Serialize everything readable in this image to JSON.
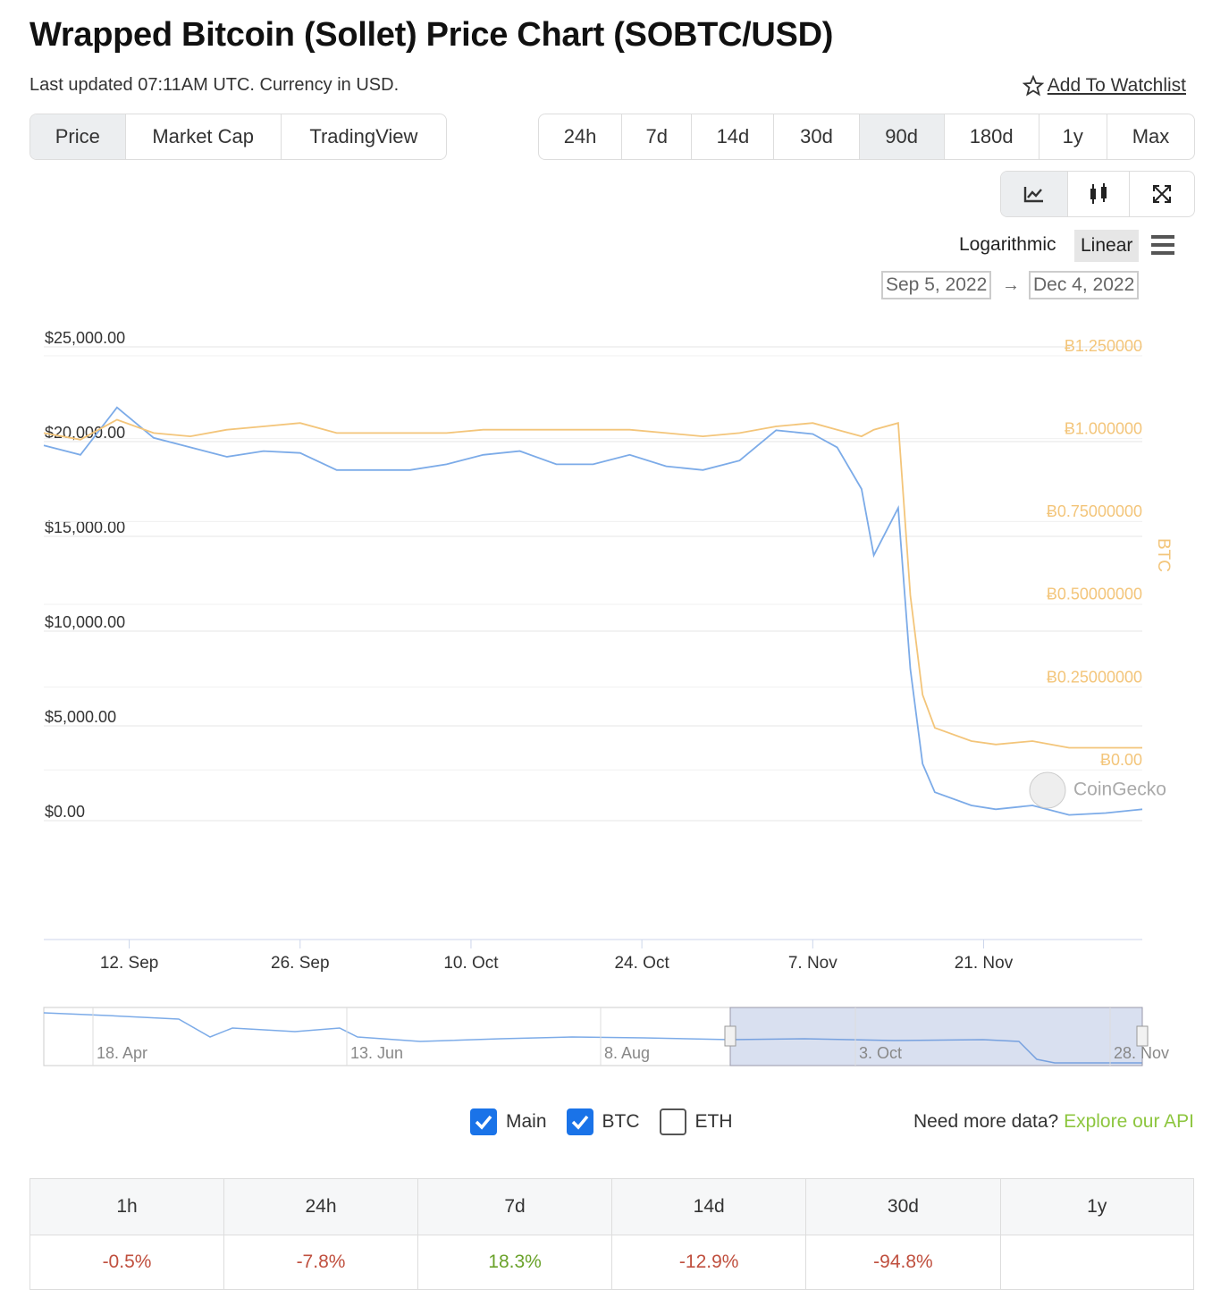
{
  "header": {
    "title": "Wrapped Bitcoin (Sollet) Price Chart (SOBTC/USD)",
    "updated": "Last updated 07:11AM UTC. Currency in USD.",
    "watchlist": "Add To Watchlist"
  },
  "tabs": [
    "Price",
    "Market Cap",
    "TradingView"
  ],
  "ranges": [
    "24h",
    "7d",
    "14d",
    "30d",
    "90d",
    "180d",
    "1y",
    "Max"
  ],
  "scale_options": [
    "Logarithmic",
    "Linear"
  ],
  "chart_data": {
    "type": "line",
    "log_scale": false,
    "grid": true,
    "xlim": [
      "Sep 5, 2022",
      "Dec 4, 2022"
    ],
    "x": [
      "Sep 5, 2022",
      "Sep 8, 2022",
      "Sep 11, 2022",
      "Sep 14, 2022",
      "Sep 17, 2022",
      "Sep 20, 2022",
      "Sep 23, 2022",
      "Sep 26, 2022",
      "Sep 29, 2022",
      "Oct 2, 2022",
      "Oct 5, 2022",
      "Oct 8, 2022",
      "Oct 11, 2022",
      "Oct 14, 2022",
      "Oct 17, 2022",
      "Oct 20, 2022",
      "Oct 23, 2022",
      "Oct 26, 2022",
      "Oct 29, 2022",
      "Nov 1, 2022",
      "Nov 4, 2022",
      "Nov 7, 2022",
      "Nov 9, 2022",
      "Nov 11, 2022",
      "Nov 12, 2022",
      "Nov 14, 2022",
      "Nov 15, 2022",
      "Nov 16, 2022",
      "Nov 17, 2022",
      "Nov 20, 2022",
      "Nov 22, 2022",
      "Nov 25, 2022",
      "Nov 28, 2022",
      "Dec 1, 2022",
      "Dec 4, 2022"
    ],
    "series": [
      {
        "name": "Main",
        "color": "#7cabe8",
        "values": [
          19800,
          19300,
          21800,
          20200,
          19700,
          19200,
          19500,
          19400,
          18500,
          18500,
          18500,
          18800,
          19300,
          19500,
          18800,
          18800,
          19300,
          18700,
          18500,
          19000,
          20600,
          20400,
          19700,
          17500,
          14000,
          16500,
          8000,
          3000,
          1500,
          800,
          600,
          800,
          300,
          400,
          600
        ]
      },
      {
        "name": "BTC",
        "color": "#f3c57a",
        "axis": "y2",
        "values": [
          0.99,
          0.97,
          1.03,
          0.99,
          0.98,
          1.0,
          1.01,
          1.02,
          0.99,
          0.99,
          0.99,
          0.99,
          1.0,
          1.0,
          1.0,
          1.0,
          1.0,
          0.99,
          0.98,
          0.99,
          1.01,
          1.02,
          1.0,
          0.98,
          1.0,
          1.02,
          0.5,
          0.2,
          0.1,
          0.06,
          0.05,
          0.06,
          0.04,
          0.04,
          0.04
        ]
      }
    ],
    "ylim": [
      0,
      25000
    ],
    "yticks": [
      {
        "value": 0,
        "label": "$0.00"
      },
      {
        "value": 5000,
        "label": "$5,000.00"
      },
      {
        "value": 10000,
        "label": "$10,000.00"
      },
      {
        "value": 15000,
        "label": "$15,000.00"
      },
      {
        "value": 20000,
        "label": "$20,000.00"
      },
      {
        "value": 25000,
        "label": "$25,000.00"
      }
    ],
    "y2lim": [
      -0.18,
      1.25
    ],
    "y2ticks": [
      {
        "value": 0,
        "label": "Ƀ0.00"
      },
      {
        "value": 0.25,
        "label": "Ƀ0.25000000"
      },
      {
        "value": 0.5,
        "label": "Ƀ0.50000000"
      },
      {
        "value": 0.75,
        "label": "Ƀ0.75000000"
      },
      {
        "value": 1,
        "label": "Ƀ1.000000"
      },
      {
        "value": 1.25,
        "label": "Ƀ1.250000"
      }
    ],
    "y2label": "BTC",
    "xticks": [
      {
        "value": "Sep 12, 2022",
        "label": "12. Sep"
      },
      {
        "value": "Sep 26, 2022",
        "label": "26. Sep"
      },
      {
        "value": "Oct 10, 2022",
        "label": "10. Oct"
      },
      {
        "value": "Oct 24, 2022",
        "label": "24. Oct"
      },
      {
        "value": "Nov 7, 2022",
        "label": "7. Nov"
      },
      {
        "value": "Nov 21, 2022",
        "label": "21. Nov"
      }
    ],
    "credit": "CoinGecko"
  },
  "navigator": [
    "18. Apr",
    "13. Jun",
    "8. Aug",
    "3. Oct",
    "28. Nov"
  ],
  "toggles": [
    {
      "label": "Main",
      "checked": true
    },
    {
      "label": "BTC",
      "checked": true
    },
    {
      "label": "ETH",
      "checked": false
    }
  ],
  "api": {
    "text": "Need more data?",
    "link": "Explore our API"
  },
  "performance": {
    "headers": [
      "1h",
      "24h",
      "7d",
      "14d",
      "30d",
      "1y"
    ],
    "values": [
      "-0.5%",
      "-7.8%",
      "18.3%",
      "-12.9%",
      "-94.8%",
      null
    ]
  }
}
